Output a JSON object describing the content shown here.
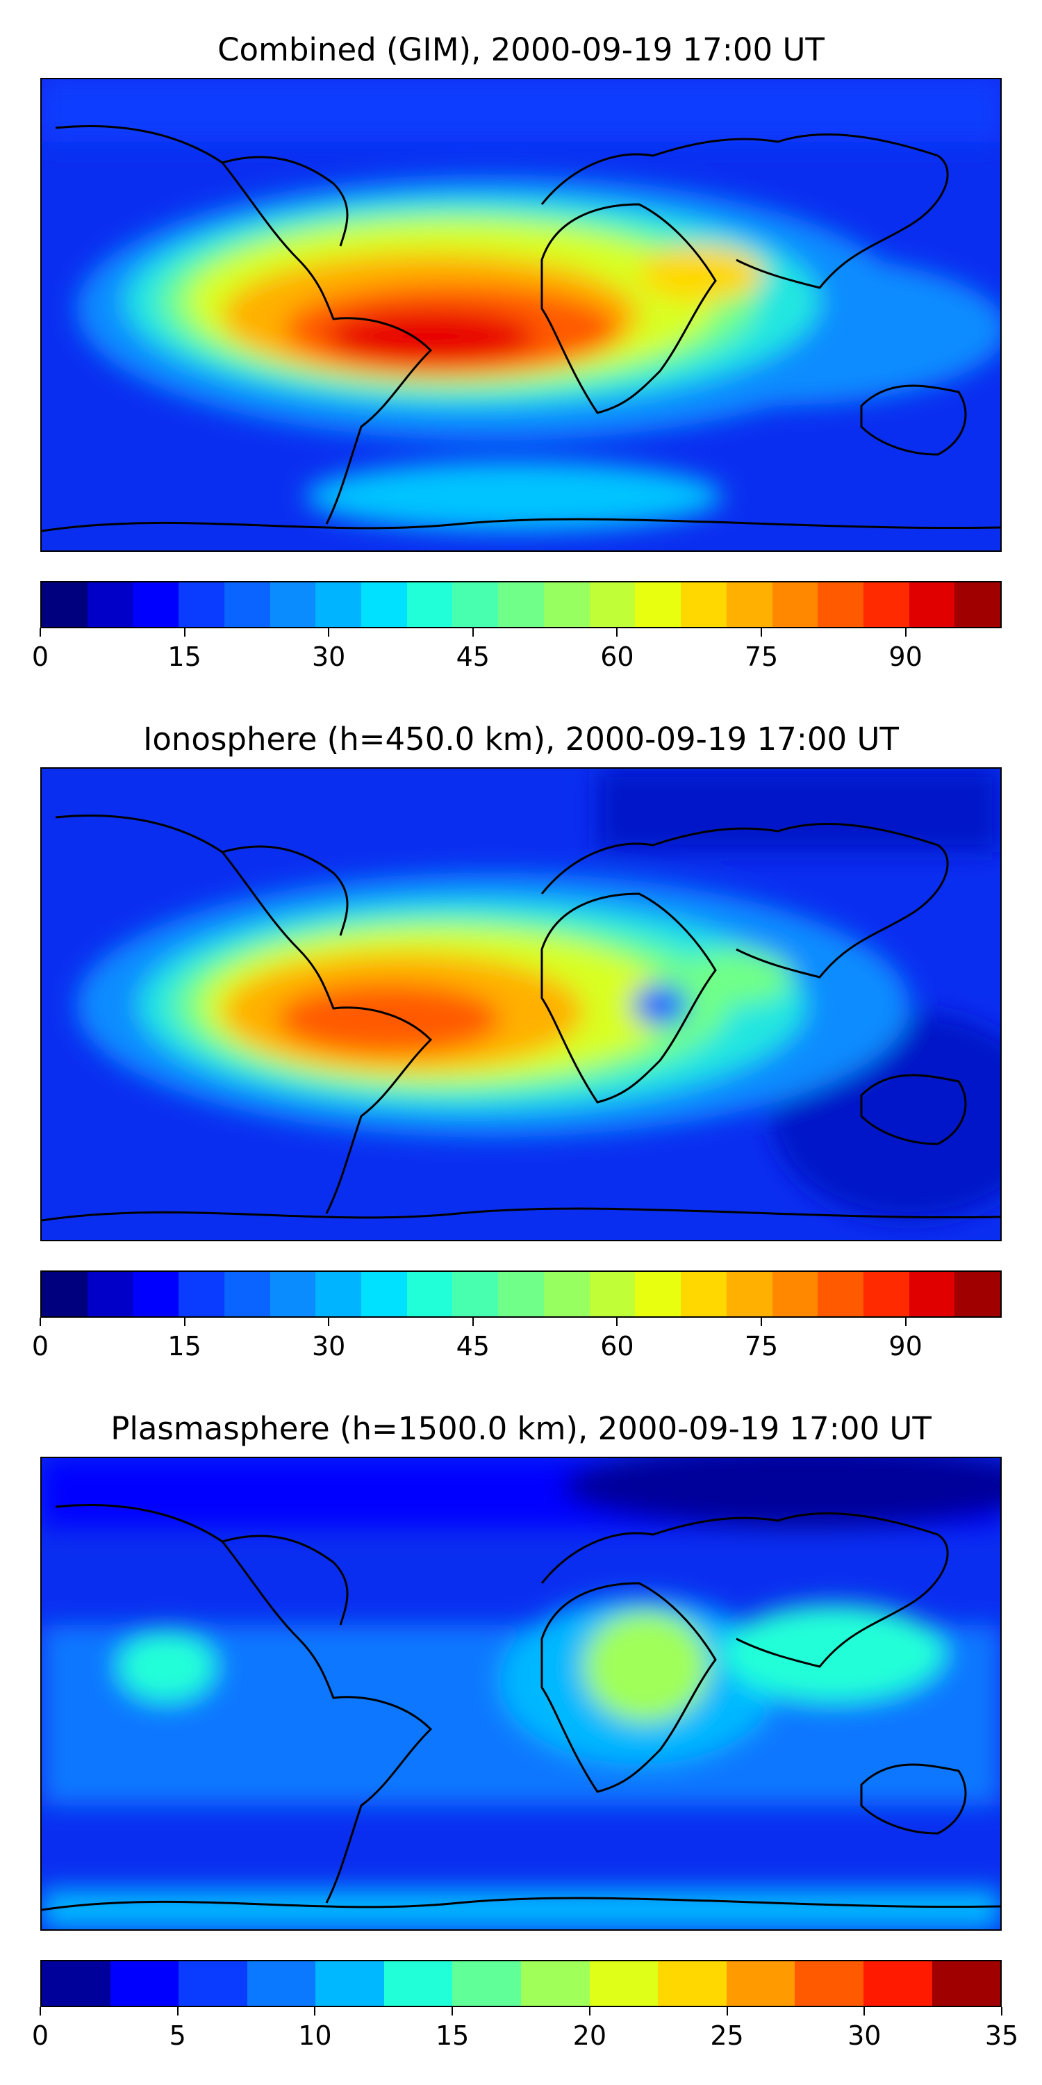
{
  "panels": [
    {
      "title": "Combined (GIM), 2000-09-19 17:00 UT",
      "vmin": 0,
      "vmax": 100,
      "colorbar_colors": [
        "#00007f",
        "#0000c8",
        "#0000ff",
        "#0a3cff",
        "#0a64ff",
        "#0a8cff",
        "#00b4ff",
        "#00e0ff",
        "#20ffd8",
        "#48ffb0",
        "#70ff88",
        "#98ff60",
        "#c0ff38",
        "#e8ff10",
        "#ffd800",
        "#ffb000",
        "#ff8800",
        "#ff5a00",
        "#ff2a00",
        "#e00000",
        "#a00000"
      ],
      "ticks": [
        0,
        15,
        30,
        45,
        60,
        75,
        90
      ],
      "tick_labels": [
        "0",
        "15",
        "30",
        "45",
        "60",
        "75",
        "90"
      ]
    },
    {
      "title": "Ionosphere  (h=450.0 km), 2000-09-19 17:00 UT",
      "vmin": 0,
      "vmax": 100,
      "colorbar_colors": [
        "#00007f",
        "#0000c8",
        "#0000ff",
        "#0a3cff",
        "#0a64ff",
        "#0a8cff",
        "#00b4ff",
        "#00e0ff",
        "#20ffd8",
        "#48ffb0",
        "#70ff88",
        "#98ff60",
        "#c0ff38",
        "#e8ff10",
        "#ffd800",
        "#ffb000",
        "#ff8800",
        "#ff5a00",
        "#ff2a00",
        "#e00000",
        "#a00000"
      ],
      "ticks": [
        0,
        15,
        30,
        45,
        60,
        75,
        90
      ],
      "tick_labels": [
        "0",
        "15",
        "30",
        "45",
        "60",
        "75",
        "90"
      ]
    },
    {
      "title": "Plasmasphere (h=1500.0 km), 2000-09-19 17:00 UT",
      "vmin": 0,
      "vmax": 35,
      "colorbar_colors": [
        "#00009a",
        "#0000ff",
        "#0a3cff",
        "#0a78ff",
        "#00b8ff",
        "#20ffd8",
        "#60ff98",
        "#a0ff58",
        "#e0ff18",
        "#ffd800",
        "#ff9a00",
        "#ff5a00",
        "#ff1a00",
        "#a00000"
      ],
      "ticks": [
        0,
        5,
        10,
        15,
        20,
        25,
        30,
        35
      ],
      "tick_labels": [
        "0",
        "5",
        "10",
        "15",
        "20",
        "25",
        "30",
        "35"
      ]
    }
  ]
}
